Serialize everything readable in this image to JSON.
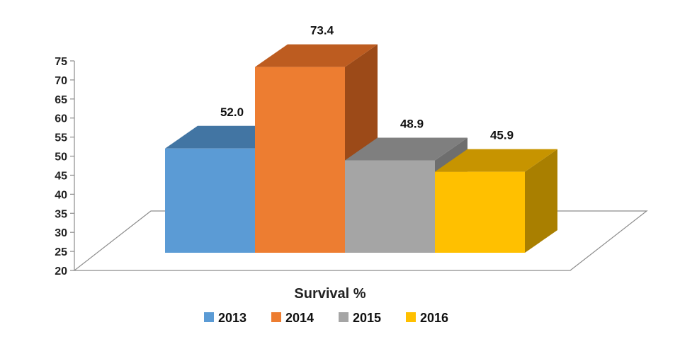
{
  "chart_data": {
    "type": "bar",
    "title": "",
    "xlabel": "Survival %",
    "ylabel": "",
    "ylim": [
      20,
      75
    ],
    "yticks": [
      20,
      25,
      30,
      35,
      40,
      45,
      50,
      55,
      60,
      65,
      70,
      75
    ],
    "categories": [
      "2013",
      "2014",
      "2015",
      "2016"
    ],
    "values": [
      52.0,
      73.4,
      48.9,
      45.9
    ],
    "value_labels": [
      "52.0",
      "73.4",
      "48.9",
      "45.9"
    ],
    "grid": false,
    "legend": "bottom",
    "style": "3d",
    "colors": {
      "2013": {
        "front": "#5b9bd5",
        "top": "#4275a3",
        "side": "#3d6a94"
      },
      "2014": {
        "front": "#ed7d31",
        "top": "#bd5c20",
        "side": "#9c4a18"
      },
      "2015": {
        "front": "#a5a5a5",
        "top": "#7f7f7f",
        "side": "#6e6e6e"
      },
      "2016": {
        "front": "#ffc000",
        "top": "#c79400",
        "side": "#a97f00"
      }
    }
  }
}
